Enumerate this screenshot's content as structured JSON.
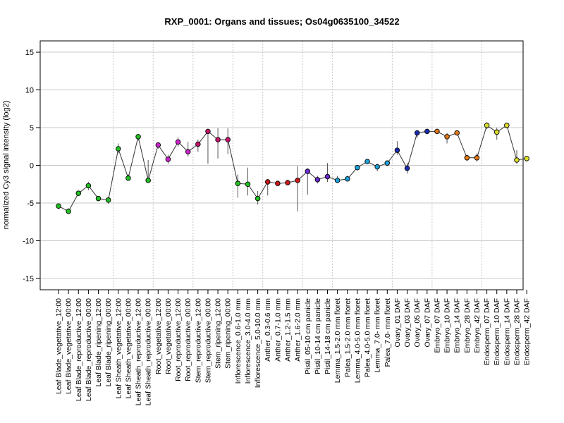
{
  "chart_data": {
    "type": "line",
    "title": "RXP_0001: Organs and tissues; Os04g0635100_34522",
    "ylabel": "normalized Cy3 signal intensity (log2)",
    "xlabel": "",
    "ylim": [
      -16.5,
      16.5
    ],
    "yticks": [
      -15,
      -10,
      -5,
      0,
      5,
      10,
      15
    ],
    "grid": "horizontal at y ticks; dotted vertical separators between tissue groups",
    "categories": [
      "Leaf Blade_vegetative_12:00",
      "Leaf Blade_vegetative_00:00",
      "Leaf Blade_reproductive_12:00",
      "Leaf Blade_reproductive_00:00",
      "Leaf Blade_ripening_12:00",
      "Leaf Blade_ripening_00:00",
      "Leaf Sheath_vegetative_12:00",
      "Leaf Sheath_vegetative_00:00",
      "Leaf Sheath_reproductive_12:00",
      "Leaf Sheath_reproductive_00:00",
      "Root_vegetative_12:00",
      "Root_vegetative_00:00",
      "Root_reproductive_12:00",
      "Root_reproductive_00:00",
      "Stem_reproductive_12:00",
      "Stem_reproductive_00:00",
      "Stem_ripening_12:00",
      "Stem_ripening_00:00",
      "Inflorescence_0.6-1.0 mm",
      "Inflorescence_3.0-4.0 mm",
      "Inflorescence_5.0-10.0 mm",
      "Anther_0.3-0.6 mm",
      "Anther_0.7-1.0 mm",
      "Anther_1.2-1.5 mm",
      "Anther_1.6-2.0 mm",
      "Pistil_05-10 cm panicle",
      "Pistil_10-14 cm panicle",
      "Pistil_14-18 cm panicle",
      "Lemma_1.5-2.0 mm floret",
      "Palea_1.5-2.0 mm floret",
      "Lemma_4.0-5.0 mm floret",
      "Palea_4.0-5.0 mm floret",
      "Lemma_7.0- mm floret",
      "Palea_7.0- mm floret",
      "Ovary_01 DAF",
      "Ovary_03 DAF",
      "Ovary_05 DAF",
      "Ovary_07 DAF",
      "Embryo_07 DAF",
      "Embryo_10 DAF",
      "Embryo_14 DAF",
      "Embryo_28 DAF",
      "Embryo_42 DAF",
      "Endosperm_07 DAF",
      "Endosperm_10 DAF",
      "Endosperm_14 DAF",
      "Endosperm_28 DAF",
      "Endosperm_42 DAF"
    ],
    "values": [
      -5.4,
      -6.1,
      -3.7,
      -2.7,
      -4.4,
      -4.6,
      2.2,
      -1.7,
      3.8,
      -2.0,
      2.7,
      0.8,
      3.1,
      1.8,
      2.8,
      4.5,
      3.4,
      3.4,
      -2.4,
      -2.5,
      -4.4,
      -2.2,
      -2.4,
      -2.3,
      -2.0,
      -0.8,
      -1.9,
      -1.5,
      -2.0,
      -1.8,
      -0.3,
      0.5,
      -0.2,
      0.3,
      2.0,
      -0.4,
      4.3,
      4.5,
      4.5,
      3.8,
      4.3,
      1.0,
      1.0,
      5.3,
      4.4,
      5.3,
      0.7,
      0.9
    ],
    "error_low": [
      -5.8,
      -6.4,
      -3.9,
      -3.3,
      -4.6,
      -5.1,
      1.6,
      -2.0,
      3.3,
      -2.3,
      2.2,
      0.2,
      2.5,
      1.2,
      1.8,
      0.2,
      0.9,
      1.5,
      -4.3,
      -4.0,
      -5.2,
      -4.0,
      -2.6,
      -2.5,
      -6.1,
      -3.9,
      -2.4,
      -2.2,
      -2.3,
      -2.1,
      -0.5,
      0.3,
      -0.8,
      -0.1,
      1.4,
      -1.1,
      3.6,
      4.3,
      4.3,
      2.9,
      4.1,
      0.6,
      0.5,
      4.8,
      3.4,
      4.9,
      0.2,
      0.5
    ],
    "error_high": [
      -5.1,
      -5.7,
      -3.4,
      -2.2,
      -4.2,
      -4.2,
      2.9,
      -1.2,
      4.1,
      0.7,
      3.0,
      1.4,
      3.7,
      3.1,
      3.4,
      4.7,
      4.9,
      4.9,
      -1.2,
      -0.3,
      -3.4,
      -1.8,
      -2.2,
      -1.9,
      -0.1,
      -0.4,
      -1.4,
      0.3,
      -1.4,
      -1.4,
      -0.1,
      0.8,
      0.2,
      0.6,
      3.2,
      0.3,
      4.6,
      4.7,
      4.7,
      4.3,
      4.5,
      1.4,
      1.6,
      5.7,
      5.0,
      5.6,
      2.0,
      1.2
    ],
    "point_colors": [
      "#22c022",
      "#22c022",
      "#22c022",
      "#22c022",
      "#22c022",
      "#22c022",
      "#22c022",
      "#22c022",
      "#22c022",
      "#22c022",
      "#cc22cc",
      "#cc22cc",
      "#cc22cc",
      "#cc22cc",
      "#c8136c",
      "#c8136c",
      "#c8136c",
      "#c8136c",
      "#22c022",
      "#22c022",
      "#22c022",
      "#cc1818",
      "#cc1818",
      "#cc1818",
      "#cc1818",
      "#6a2bd6",
      "#6a2bd6",
      "#6a2bd6",
      "#1ea0d6",
      "#1ea0d6",
      "#1ea0d6",
      "#1ea0d6",
      "#1ea0d6",
      "#1ea0d6",
      "#1a2bb0",
      "#1a2bb0",
      "#1a2bb0",
      "#1a2bb0",
      "#e07818",
      "#e07818",
      "#e07818",
      "#e07818",
      "#e07818",
      "#dcdc2e",
      "#dcdc2e",
      "#dcdc2e",
      "#dcdc2e",
      "#dcdc2e"
    ],
    "group_separators_after_index": [
      5,
      9,
      13,
      17,
      20,
      24,
      27,
      33,
      37,
      42
    ]
  }
}
